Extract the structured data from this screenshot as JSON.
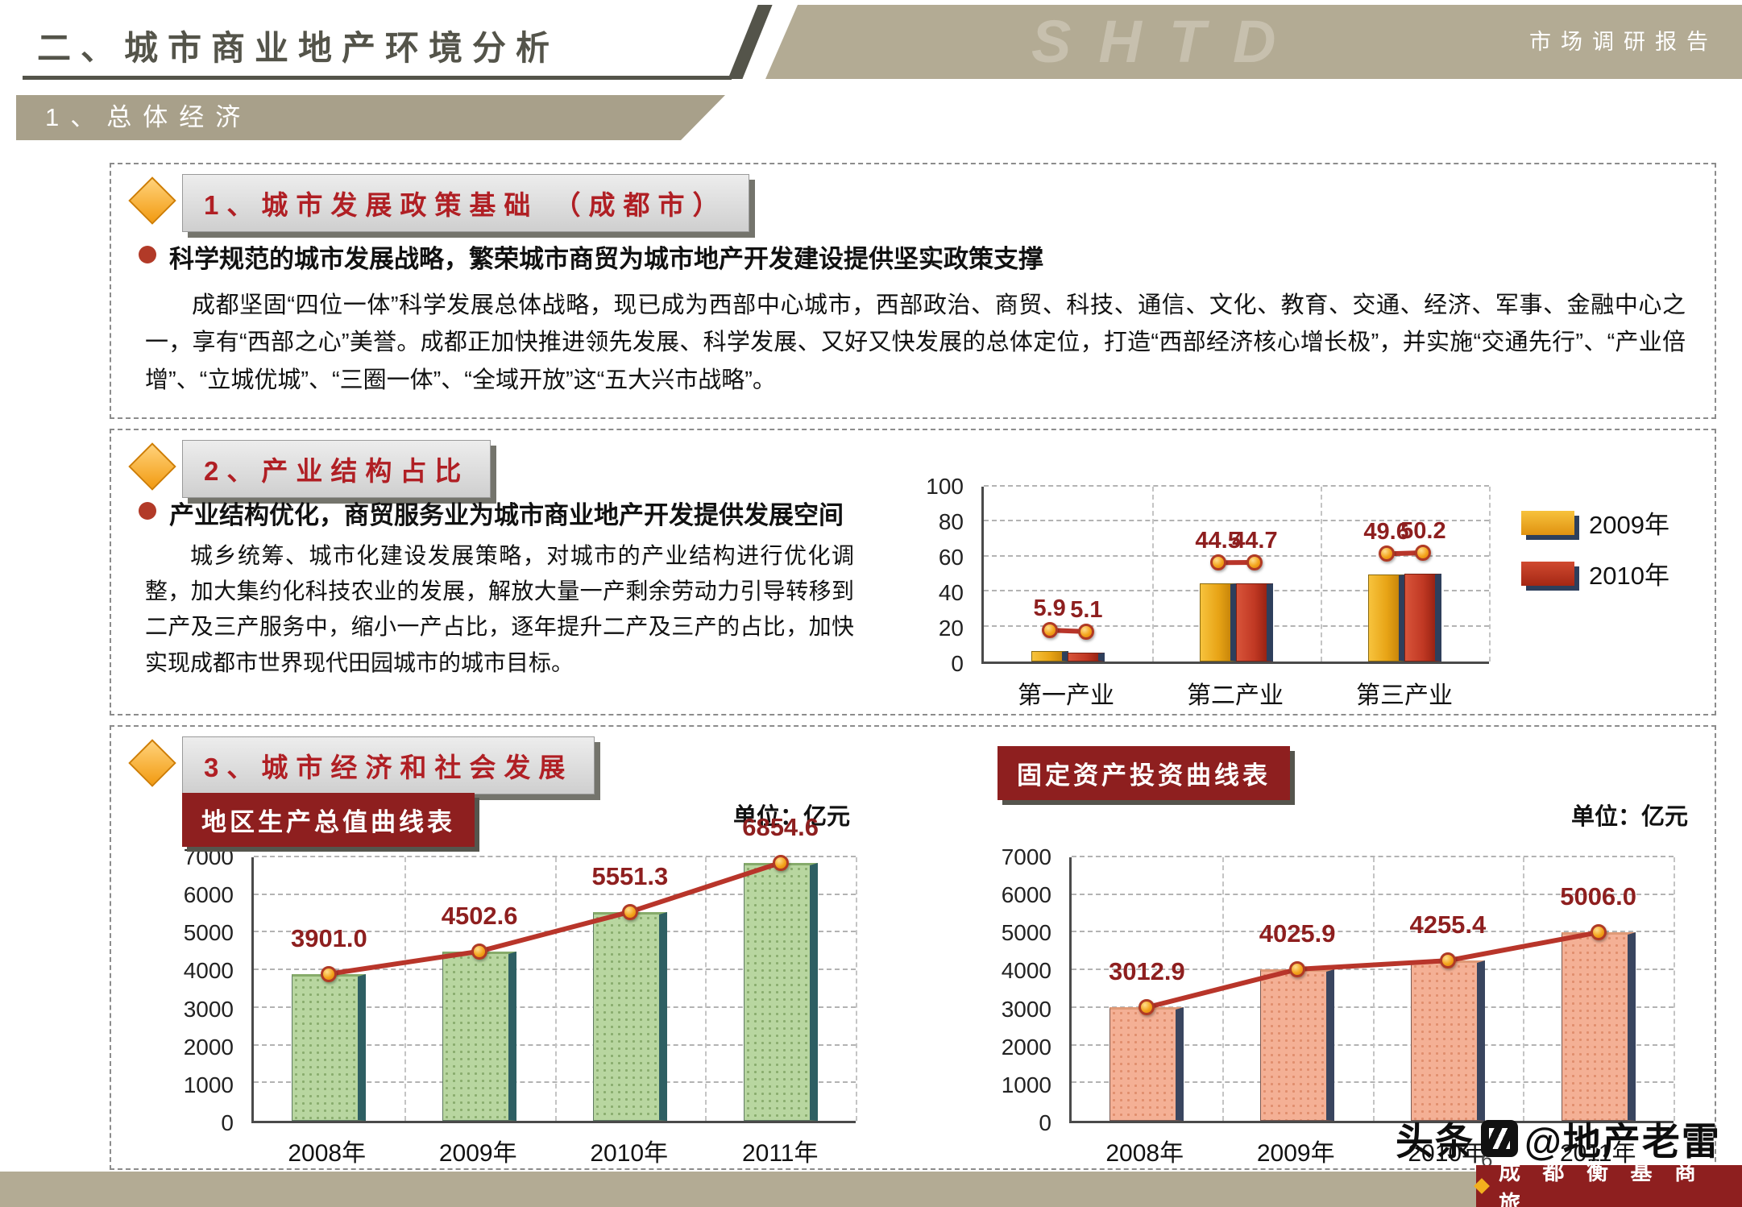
{
  "header": {
    "title": "二、城市商业地产环境分析",
    "logo": "SHTD",
    "report_label": "市场调研报告",
    "section_bar": "1、总体经济"
  },
  "sections": {
    "policy": {
      "title": "1、城市发展政策基础 （成都市）",
      "bullet": "科学规范的城市发展战略，繁荣城市商贸为城市地产开发建设提供坚实政策支撑",
      "paragraph": "成都坚固“四位一体”科学发展总体战略，现已成为西部中心城市，西部政治、商贸、科技、通信、文化、教育、交通、经济、军事、金融中心之一，享有“西部之心”美誉。成都正加快推进领先发展、科学发展、又好又快发展的总体定位，打造“西部经济核心增长极”，并实施“交通先行”、“产业倍增”、“立城优城”、“三圈一体”、“全域开放”这“五大兴市战略”。"
    },
    "industry": {
      "title": "2、产业结构占比",
      "bullet": "产业结构优化，商贸服务业为城市商业地产开发提供发展空间",
      "paragraph": "城乡统筹、城市化建设发展策略，对城市的产业结构进行优化调整，加大集约化科技农业的发展，解放大量一产剩余劳动力引导转移到二产及三产服务中，缩小一产占比，逐年提升二产及三产的占比，加快实现成都市世界现代田园城市的城市目标。"
    },
    "economy": {
      "title": "3、城市经济和社会发展"
    }
  },
  "chart_data": [
    {
      "id": "industry-structure",
      "type": "bar",
      "categories": [
        "第一产业",
        "第二产业",
        "第三产业"
      ],
      "series": [
        {
          "name": "2009年",
          "color": "#f2a51e",
          "values": [
            5.9,
            44.5,
            49.6
          ]
        },
        {
          "name": "2010年",
          "color": "#c0392b",
          "values": [
            5.1,
            44.7,
            50.2
          ]
        }
      ],
      "ylim": [
        0,
        100
      ],
      "yticks": [
        0,
        20,
        40,
        60,
        80,
        100
      ],
      "grid": true,
      "legend_position": "right"
    },
    {
      "id": "gdp",
      "type": "bar",
      "title": "地区生产总值曲线表",
      "unit_label": "单位：亿元",
      "categories": [
        "2008年",
        "2009年",
        "2010年",
        "2011年"
      ],
      "values": [
        3901.0,
        4502.6,
        5551.3,
        6854.6
      ],
      "ylim": [
        0,
        7000
      ],
      "yticks": [
        0,
        1000,
        2000,
        3000,
        4000,
        5000,
        6000,
        7000
      ],
      "bar_color": "#b5d49c",
      "grid": true
    },
    {
      "id": "fixed-investment",
      "type": "bar",
      "title": "固定资产投资曲线表",
      "unit_label": "单位：亿元",
      "categories": [
        "2008年",
        "2009年",
        "2010年",
        "2011年"
      ],
      "values": [
        3012.9,
        4025.9,
        4255.4,
        5006.0
      ],
      "ylim": [
        0,
        7000
      ],
      "yticks": [
        0,
        1000,
        2000,
        3000,
        4000,
        5000,
        6000,
        7000
      ],
      "bar_color": "#f2ab8e",
      "grid": true
    }
  ],
  "footer": {
    "brand": "成 都 衡 基 商 旅",
    "watermark_prefix": "头条",
    "watermark_handle": "@地产老雷",
    "page_number": "6"
  }
}
